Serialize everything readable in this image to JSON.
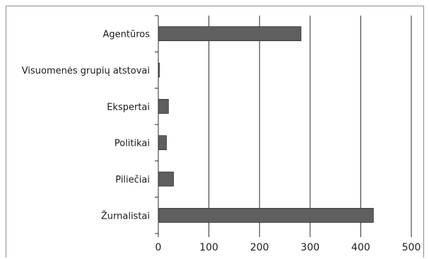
{
  "chart_data": {
    "type": "bar",
    "orientation": "horizontal",
    "categories": [
      "Agentūros",
      "Visuomenės grupių atstovai",
      "Ekspertai",
      "Politikai",
      "Piliečiai",
      "Žurnalistai"
    ],
    "values": [
      282,
      2,
      20,
      16,
      30,
      425
    ],
    "xlim": [
      0,
      500
    ],
    "xticks": [
      "0",
      "100",
      "200",
      "300",
      "400",
      "500"
    ],
    "grid": "vertical",
    "legend": "none",
    "bar_color": "#5f5f5f",
    "title": "",
    "xlabel": "",
    "ylabel": ""
  }
}
